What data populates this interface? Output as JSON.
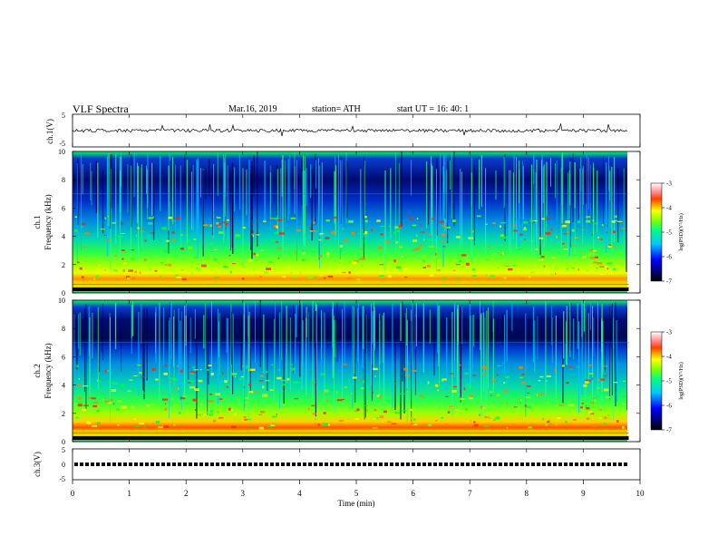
{
  "header": {
    "title": "VLF  Spectra",
    "date": "Mar.16, 2019",
    "station": "station= ATH",
    "start": "start  UT  =   16: 40: 1"
  },
  "chart_data": [
    {
      "type": "line",
      "title": "",
      "ylabel": "ch.1(V)",
      "ylim": [
        -5,
        5
      ],
      "yticks": [
        "5",
        "-5"
      ],
      "xlim": [
        0,
        10
      ],
      "series": [
        {
          "values_description_level": 0,
          "x_range": [
            0,
            9.8
          ]
        }
      ],
      "description_level": "noisy trace near 0 V"
    },
    {
      "type": "heatmap",
      "title": "",
      "channel_label": "ch.1",
      "ylabel": "Frequency (kHz)",
      "ylim": [
        0,
        10
      ],
      "yticks": [
        "0",
        "2",
        "4",
        "6",
        "8",
        "10"
      ],
      "xlim": [
        0,
        10
      ],
      "x_end": 9.8,
      "colorbar": {
        "label": "log(PSD)(V²/Hz)",
        "range": [
          -7,
          -3
        ],
        "ticks": [
          "-3",
          "-4",
          "-5",
          "-6",
          "-7"
        ]
      }
    },
    {
      "type": "heatmap",
      "title": "",
      "channel_label": "ch.2",
      "ylabel": "Frequency (kHz)",
      "ylim": [
        0,
        10
      ],
      "yticks": [
        "0",
        "2",
        "4",
        "6",
        "8",
        "10"
      ],
      "xlim": [
        0,
        10
      ],
      "x_end": 9.8,
      "colorbar": {
        "label": "log(PSD)(V²/Hz)",
        "range": [
          -7,
          -3
        ],
        "ticks": [
          "-3",
          "-4",
          "-5",
          "-6",
          "-7"
        ]
      }
    },
    {
      "type": "line",
      "title": "",
      "ylabel": "ch.3(V)",
      "ylim": [
        -5,
        5
      ],
      "yticks": [
        "5",
        "0",
        "-5"
      ],
      "xlim": [
        0,
        10
      ],
      "level": 0,
      "description_level": "pulse train near 0 V"
    }
  ],
  "xaxis": {
    "label": "Time  (min)",
    "ticks": [
      "0",
      "1",
      "2",
      "3",
      "4",
      "5",
      "6",
      "7",
      "8",
      "9",
      "10"
    ]
  },
  "colors": {
    "trace": "#000000",
    "colormap": [
      "#000033",
      "#0000ff",
      "#00ffff",
      "#00ff00",
      "#ffff00",
      "#ff0000",
      "#ffffff"
    ]
  }
}
